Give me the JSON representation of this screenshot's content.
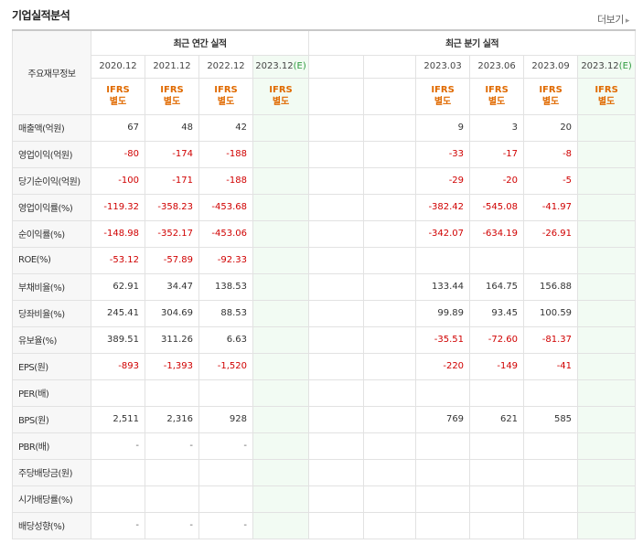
{
  "header": {
    "title": "기업실적분석",
    "more_label": "더보기"
  },
  "table": {
    "corner_label": "주요재무정보",
    "annual_title": "최근 연간 실적",
    "quarter_title": "최근 분기 실적",
    "annual_periods": [
      "2020.12",
      "2021.12",
      "2022.12",
      "2023.12(E)"
    ],
    "quarter_periods": [
      "2023.03",
      "2023.06",
      "2023.09",
      "2023.12(E)"
    ],
    "ifrs_label": "IFRS",
    "ifrs_sub": "별도",
    "rows": [
      {
        "label": "매출액(억원)",
        "annual": [
          "67",
          "48",
          "42",
          ""
        ],
        "quarter": [
          "9",
          "3",
          "20",
          ""
        ]
      },
      {
        "label": "영업이익(억원)",
        "annual": [
          "-80",
          "-174",
          "-188",
          ""
        ],
        "quarter": [
          "-33",
          "-17",
          "-8",
          ""
        ]
      },
      {
        "label": "당기순이익(억원)",
        "annual": [
          "-100",
          "-171",
          "-188",
          ""
        ],
        "quarter": [
          "-29",
          "-20",
          "-5",
          ""
        ]
      },
      {
        "label": "영업이익률(%)",
        "annual": [
          "-119.32",
          "-358.23",
          "-453.68",
          ""
        ],
        "quarter": [
          "-382.42",
          "-545.08",
          "-41.97",
          ""
        ]
      },
      {
        "label": "순이익률(%)",
        "annual": [
          "-148.98",
          "-352.17",
          "-453.06",
          ""
        ],
        "quarter": [
          "-342.07",
          "-634.19",
          "-26.91",
          ""
        ]
      },
      {
        "label": "ROE(%)",
        "annual": [
          "-53.12",
          "-57.89",
          "-92.33",
          ""
        ],
        "quarter": [
          "",
          "",
          "",
          ""
        ]
      },
      {
        "label": "부채비율(%)",
        "annual": [
          "62.91",
          "34.47",
          "138.53",
          ""
        ],
        "quarter": [
          "133.44",
          "164.75",
          "156.88",
          ""
        ]
      },
      {
        "label": "당좌비율(%)",
        "annual": [
          "245.41",
          "304.69",
          "88.53",
          ""
        ],
        "quarter": [
          "99.89",
          "93.45",
          "100.59",
          ""
        ]
      },
      {
        "label": "유보율(%)",
        "annual": [
          "389.51",
          "311.26",
          "6.63",
          ""
        ],
        "quarter": [
          "-35.51",
          "-72.60",
          "-81.37",
          ""
        ]
      },
      {
        "label": "EPS(원)",
        "annual": [
          "-893",
          "-1,393",
          "-1,520",
          ""
        ],
        "quarter": [
          "-220",
          "-149",
          "-41",
          ""
        ]
      },
      {
        "label": "PER(배)",
        "annual": [
          "",
          "",
          "",
          ""
        ],
        "quarter": [
          "",
          "",
          "",
          ""
        ]
      },
      {
        "label": "BPS(원)",
        "annual": [
          "2,511",
          "2,316",
          "928",
          ""
        ],
        "quarter": [
          "769",
          "621",
          "585",
          ""
        ]
      },
      {
        "label": "PBR(배)",
        "annual": [
          "-",
          "-",
          "-",
          ""
        ],
        "quarter": [
          "",
          "",
          "",
          ""
        ]
      },
      {
        "label": "주당배당금(원)",
        "annual": [
          "",
          "",
          "",
          ""
        ],
        "quarter": [
          "",
          "",
          "",
          ""
        ]
      },
      {
        "label": "시가배당률(%)",
        "annual": [
          "",
          "",
          "",
          ""
        ],
        "quarter": [
          "",
          "",
          "",
          ""
        ]
      },
      {
        "label": "배당성향(%)",
        "annual": [
          "-",
          "-",
          "-",
          ""
        ],
        "quarter": [
          "",
          "",
          "",
          ""
        ]
      }
    ]
  }
}
